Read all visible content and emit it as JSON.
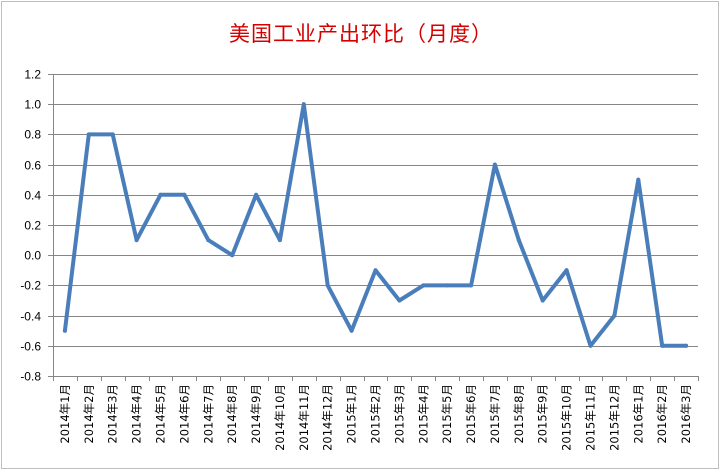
{
  "chart_data": {
    "type": "line",
    "title": "美国工业产出环比（月度）",
    "xlabel": "",
    "ylabel": "",
    "ylim": [
      -0.8,
      1.2
    ],
    "ytick_step": 0.2,
    "yticks": [
      "-0.8",
      "-0.6",
      "-0.4",
      "-0.2",
      "0.0",
      "0.2",
      "0.4",
      "0.6",
      "0.8",
      "1.0",
      "1.2"
    ],
    "grid": true,
    "legend": "none",
    "categories": [
      "2014年1月",
      "2014年2月",
      "2014年3月",
      "2014年4月",
      "2014年5月",
      "2014年6月",
      "2014年7月",
      "2014年8月",
      "2014年9月",
      "2014年10月",
      "2014年11月",
      "2014年12月",
      "2015年1月",
      "2015年2月",
      "2015年3月",
      "2015年4月",
      "2015年5月",
      "2015年6月",
      "2015年7月",
      "2015年8月",
      "2015年9月",
      "2015年10月",
      "2015年11月",
      "2015年12月",
      "2016年1月",
      "2016年2月",
      "2016年3月"
    ],
    "series": [
      {
        "color": "#4a7ebb",
        "values": [
          -0.5,
          0.8,
          0.8,
          0.1,
          0.4,
          0.4,
          0.1,
          0.0,
          0.4,
          0.1,
          1.0,
          -0.2,
          -0.5,
          -0.1,
          -0.3,
          -0.2,
          -0.2,
          -0.2,
          0.6,
          0.1,
          -0.3,
          -0.1,
          -0.6,
          -0.4,
          0.5,
          -0.6,
          -0.6
        ]
      }
    ]
  }
}
